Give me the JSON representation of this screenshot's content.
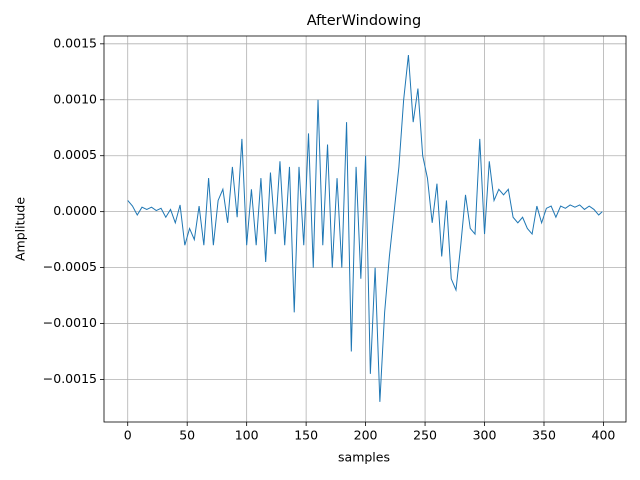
{
  "chart_data": {
    "type": "line",
    "title": "AfterWindowing",
    "x_label": "samples",
    "y_label": "Amplitude",
    "x": [
      0,
      4,
      8,
      12,
      16,
      20,
      24,
      28,
      32,
      36,
      40,
      44,
      48,
      52,
      56,
      60,
      64,
      68,
      72,
      76,
      80,
      84,
      88,
      92,
      96,
      100,
      104,
      108,
      112,
      116,
      120,
      124,
      128,
      132,
      136,
      140,
      144,
      148,
      152,
      156,
      160,
      164,
      168,
      172,
      176,
      180,
      184,
      188,
      192,
      196,
      200,
      204,
      208,
      212,
      216,
      220,
      224,
      228,
      232,
      236,
      240,
      244,
      248,
      252,
      256,
      260,
      264,
      268,
      272,
      276,
      280,
      284,
      288,
      292,
      296,
      300,
      304,
      308,
      312,
      316,
      320,
      324,
      328,
      332,
      336,
      340,
      344,
      348,
      352,
      356,
      360,
      364,
      368,
      372,
      376,
      380,
      384,
      388,
      392,
      396,
      399
    ],
    "series": [
      {
        "name": "AfterWindowing",
        "color": "#1f77b4",
        "values": [
          0.0001,
          5e-05,
          -3e-05,
          4e-05,
          2e-05,
          4e-05,
          1e-05,
          3e-05,
          -5e-05,
          2e-05,
          -0.0001,
          6e-05,
          -0.0003,
          -0.00015,
          -0.00025,
          5e-05,
          -0.0003,
          0.0003,
          -0.0003,
          0.0001,
          0.0002,
          -0.0001,
          0.0004,
          -5e-05,
          0.00065,
          -0.0003,
          0.0002,
          -0.0003,
          0.0003,
          -0.00045,
          0.00035,
          -0.0002,
          0.00045,
          -0.0003,
          0.0004,
          -0.0009,
          0.0004,
          -0.0003,
          0.0007,
          -0.0005,
          0.001,
          -0.0003,
          0.0006,
          -0.0005,
          0.0003,
          -0.0005,
          0.0008,
          -0.00125,
          0.0004,
          -0.0006,
          0.0005,
          -0.00145,
          -0.0005,
          -0.0017,
          -0.0009,
          -0.0004,
          0,
          0.0004,
          0.001,
          0.0014,
          0.0008,
          0.0011,
          0.0005,
          0.0003,
          -0.0001,
          0.00025,
          -0.0004,
          0.0001,
          -0.0006,
          -0.0007,
          -0.0003,
          0.00015,
          -0.00015,
          -0.0002,
          0.00065,
          -0.0002,
          0.00045,
          0.0001,
          0.0002,
          0.00015,
          0.0002,
          -5e-05,
          -0.0001,
          -5e-05,
          -0.00015,
          -0.0002,
          5e-05,
          -0.0001,
          3e-05,
          5e-05,
          -5e-05,
          5e-05,
          3e-05,
          6e-05,
          4e-05,
          6e-05,
          2e-05,
          5e-05,
          2e-05,
          -3e-05,
          0
        ]
      }
    ],
    "xlim": [
      -19.95,
      418.95
    ],
    "xticks": [
      0,
      50,
      100,
      150,
      200,
      250,
      300,
      350,
      400
    ],
    "ylim": [
      -0.00188,
      0.00157
    ],
    "yticks": [
      {
        "value": -0.0015,
        "label": "−0.0015"
      },
      {
        "value": -0.001,
        "label": "−0.0010"
      },
      {
        "value": -0.0005,
        "label": "−0.0005"
      },
      {
        "value": 0,
        "label": "0.0000"
      },
      0.0005,
      {
        "value": 0.001,
        "label": "0.0010"
      },
      0.0015
    ],
    "grid": true
  }
}
